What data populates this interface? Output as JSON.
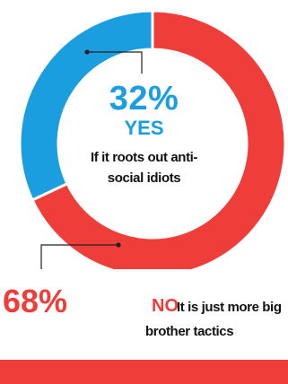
{
  "colors": {
    "yes": "#1a9ee0",
    "no": "#ef3e3a",
    "connector": "#222222"
  },
  "chart_data": {
    "type": "pie",
    "style": "donut",
    "series": [
      {
        "name": "YES",
        "value": 32,
        "label": "32%",
        "text_lines": [
          "If it roots out anti-",
          "social idiots"
        ],
        "color": "#1a9ee0"
      },
      {
        "name": "NO",
        "value": 68,
        "label": "68%",
        "text_lines": [
          "It is just more big",
          "brother tactics"
        ],
        "color": "#ef3e3a"
      }
    ]
  }
}
